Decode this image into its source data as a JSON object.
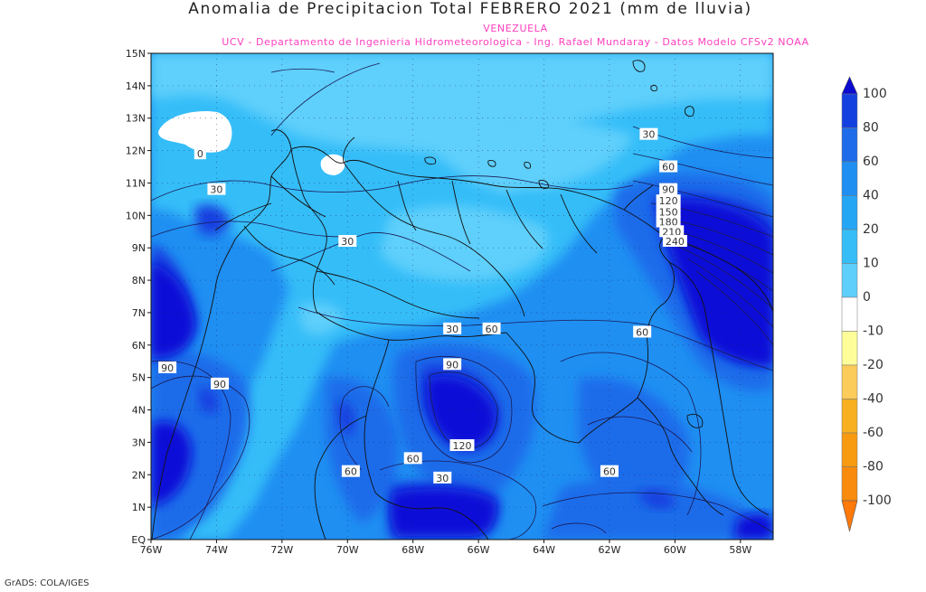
{
  "header": {
    "title": "Anomalia de Precipitacion Total FEBRERO 2021 (mm de lluvia)",
    "subtitle": "VENEZUELA",
    "credits": "UCV - Departamento de Ingenieria Hidrometeorologica - Ing. Rafael Mundaray - Datos Modelo CFSv2 NOAA"
  },
  "map": {
    "lat_labels": [
      "15N",
      "14N",
      "13N",
      "12N",
      "11N",
      "10N",
      "9N",
      "8N",
      "7N",
      "6N",
      "5N",
      "4N",
      "3N",
      "2N",
      "1N",
      "EQ"
    ],
    "lon_labels": [
      "76W",
      "74W",
      "72W",
      "70W",
      "68W",
      "66W",
      "64W",
      "62W",
      "60W",
      "58W"
    ],
    "contour_labels": [
      {
        "text": "0",
        "lon": -74.5,
        "lat": 11.9
      },
      {
        "text": "30",
        "lon": -74.0,
        "lat": 10.8
      },
      {
        "text": "30",
        "lon": -70.0,
        "lat": 9.2
      },
      {
        "text": "30",
        "lon": -60.8,
        "lat": 12.5
      },
      {
        "text": "60",
        "lon": -60.2,
        "lat": 11.5
      },
      {
        "text": "90",
        "lon": -60.2,
        "lat": 10.8
      },
      {
        "text": "120",
        "lon": -60.2,
        "lat": 10.45
      },
      {
        "text": "150",
        "lon": -60.2,
        "lat": 10.1
      },
      {
        "text": "180",
        "lon": -60.2,
        "lat": 9.8
      },
      {
        "text": "210",
        "lon": -60.1,
        "lat": 9.5
      },
      {
        "text": "240",
        "lon": -60.0,
        "lat": 9.2
      },
      {
        "text": "30",
        "lon": -66.8,
        "lat": 6.5
      },
      {
        "text": "60",
        "lon": -65.6,
        "lat": 6.5
      },
      {
        "text": "60",
        "lon": -61.0,
        "lat": 6.4
      },
      {
        "text": "90",
        "lon": -75.5,
        "lat": 5.3
      },
      {
        "text": "90",
        "lon": -73.9,
        "lat": 4.8
      },
      {
        "text": "90",
        "lon": -66.8,
        "lat": 5.4
      },
      {
        "text": "120",
        "lon": -66.5,
        "lat": 2.9
      },
      {
        "text": "60",
        "lon": -69.9,
        "lat": 2.1
      },
      {
        "text": "60",
        "lon": -68.0,
        "lat": 2.5
      },
      {
        "text": "30",
        "lon": -67.1,
        "lat": 1.9
      },
      {
        "text": "60",
        "lon": -62.0,
        "lat": 2.1
      }
    ]
  },
  "legend": {
    "levels": [
      {
        "label": "100",
        "color": "#0f10d8"
      },
      {
        "label": "80",
        "color": "#1540e0"
      },
      {
        "label": "60",
        "color": "#1e6cea"
      },
      {
        "label": "40",
        "color": "#1f8ff2"
      },
      {
        "label": "20",
        "color": "#25a6f5"
      },
      {
        "label": "10",
        "color": "#35bdf8"
      },
      {
        "label": "0",
        "color": "#5ecffb"
      },
      {
        "label": "-10",
        "color": "#ffffff"
      },
      {
        "label": "-20",
        "color": "#fdfd9a"
      },
      {
        "label": "-40",
        "color": "#fbcc5a"
      },
      {
        "label": "-60",
        "color": "#f8b020"
      },
      {
        "label": "-80",
        "color": "#f79a10"
      },
      {
        "label": "-100",
        "color": "#f98b0e"
      }
    ],
    "top_cap_color": "#0a0ad0",
    "bottom_cap_color": "#ff7a0a"
  },
  "footer": {
    "text": "GrADS: COLA/IGES"
  }
}
